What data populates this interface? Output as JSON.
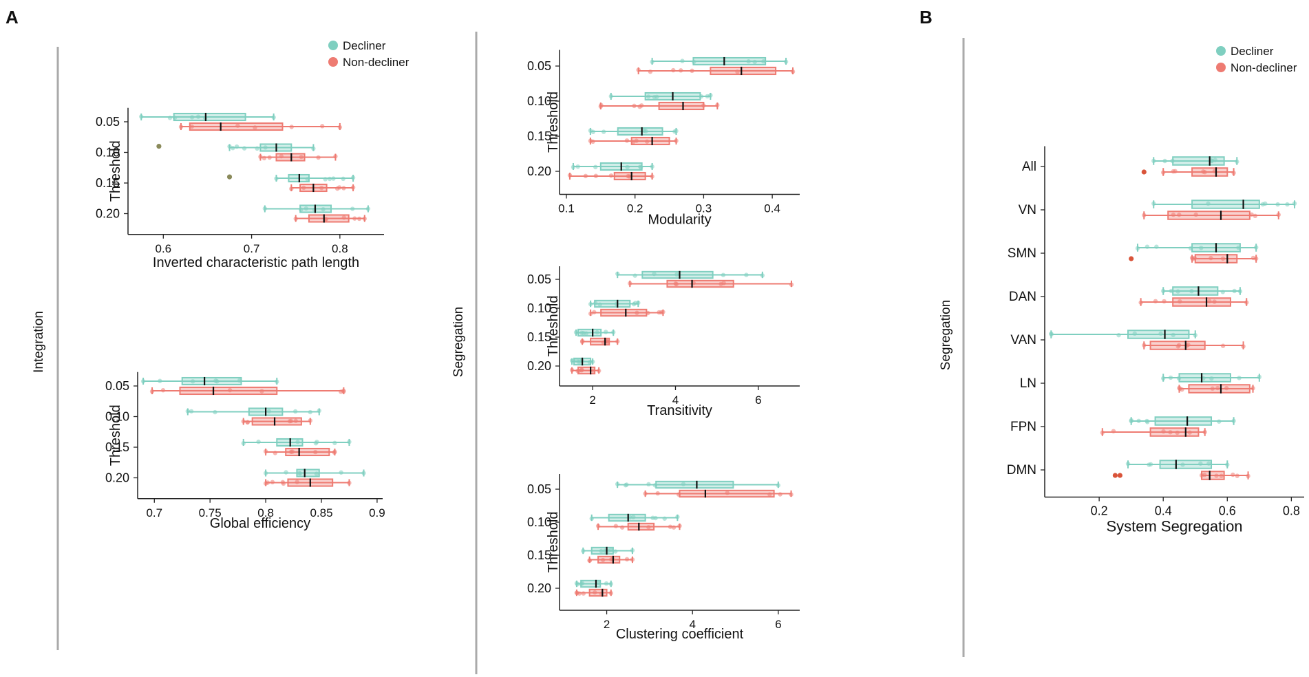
{
  "panel_labels": {
    "a": "A",
    "b": "B"
  },
  "section_labels": {
    "integration": "Integration",
    "segregation_a": "Segregation",
    "segregation_b": "Segregation"
  },
  "colors": {
    "decliner": "#7fcfc0",
    "non_decliner": "#ee7b72",
    "median": "#111111",
    "divider": "#aaaaaa",
    "outlier": "#8a8a5a"
  },
  "legend_a": {
    "decliner": "Decliner",
    "non_decliner": "Non-decliner"
  },
  "legend_b": {
    "decliner": "Decliner",
    "non_decliner": "Non-decliner"
  },
  "chart_data": [
    {
      "id": "inv_cpl",
      "type": "boxplot",
      "orientation": "horizontal",
      "xlabel": "Inverted characteristic path length",
      "ylabel": "Threshold",
      "xlim": [
        0.56,
        0.85
      ],
      "xticks": [
        0.6,
        0.7,
        0.8
      ],
      "categories": [
        "0.05",
        "0.10",
        "0.15",
        "0.20"
      ],
      "series": [
        {
          "name": "Decliner",
          "boxes": [
            {
              "min": 0.575,
              "q1": 0.612,
              "med": 0.648,
              "q3": 0.693,
              "max": 0.725
            },
            {
              "min": 0.675,
              "q1": 0.71,
              "med": 0.728,
              "q3": 0.745,
              "max": 0.77
            },
            {
              "min": 0.728,
              "q1": 0.742,
              "med": 0.754,
              "q3": 0.765,
              "max": 0.815
            },
            {
              "min": 0.715,
              "q1": 0.755,
              "med": 0.772,
              "q3": 0.79,
              "max": 0.832
            }
          ],
          "outliers": [
            [
              0.595,
              1
            ],
            [
              0.675,
              2
            ]
          ]
        },
        {
          "name": "Non-decliner",
          "boxes": [
            {
              "min": 0.62,
              "q1": 0.63,
              "med": 0.665,
              "q3": 0.735,
              "max": 0.8
            },
            {
              "min": 0.71,
              "q1": 0.728,
              "med": 0.745,
              "q3": 0.76,
              "max": 0.795
            },
            {
              "min": 0.745,
              "q1": 0.755,
              "med": 0.77,
              "q3": 0.785,
              "max": 0.815
            },
            {
              "min": 0.75,
              "q1": 0.765,
              "med": 0.782,
              "q3": 0.81,
              "max": 0.828
            }
          ],
          "outliers": []
        }
      ]
    },
    {
      "id": "glob_eff",
      "type": "boxplot",
      "orientation": "horizontal",
      "xlabel": "Global efficiency",
      "ylabel": "Threshold",
      "xlim": [
        0.685,
        0.905
      ],
      "xticks": [
        0.7,
        0.75,
        0.8,
        0.85,
        0.9
      ],
      "xtick_labels": [
        "0.7",
        "0.75",
        "0.8",
        "0.85",
        "0.9"
      ],
      "categories": [
        "0.05",
        "0.10",
        "0.15",
        "0.20"
      ],
      "series": [
        {
          "name": "Decliner",
          "boxes": [
            {
              "min": 0.69,
              "q1": 0.725,
              "med": 0.745,
              "q3": 0.778,
              "max": 0.81
            },
            {
              "min": 0.73,
              "q1": 0.785,
              "med": 0.8,
              "q3": 0.815,
              "max": 0.848
            },
            {
              "min": 0.78,
              "q1": 0.81,
              "med": 0.822,
              "q3": 0.833,
              "max": 0.875
            },
            {
              "min": 0.8,
              "q1": 0.828,
              "med": 0.835,
              "q3": 0.848,
              "max": 0.888
            }
          ],
          "outliers": []
        },
        {
          "name": "Non-decliner",
          "boxes": [
            {
              "min": 0.698,
              "q1": 0.723,
              "med": 0.753,
              "q3": 0.81,
              "max": 0.87
            },
            {
              "min": 0.78,
              "q1": 0.788,
              "med": 0.808,
              "q3": 0.832,
              "max": 0.84
            },
            {
              "min": 0.8,
              "q1": 0.818,
              "med": 0.83,
              "q3": 0.857,
              "max": 0.862
            },
            {
              "min": 0.8,
              "q1": 0.82,
              "med": 0.84,
              "q3": 0.86,
              "max": 0.875
            }
          ],
          "outliers": []
        }
      ]
    },
    {
      "id": "modularity",
      "type": "boxplot",
      "orientation": "horizontal",
      "xlabel": "Modularity",
      "ylabel": "Threshold",
      "xlim": [
        0.09,
        0.44
      ],
      "xticks": [
        0.1,
        0.2,
        0.3,
        0.4
      ],
      "categories": [
        "0.05",
        "0.10",
        "0.15",
        "0.20"
      ],
      "series": [
        {
          "name": "Decliner",
          "boxes": [
            {
              "min": 0.225,
              "q1": 0.285,
              "med": 0.33,
              "q3": 0.39,
              "max": 0.42
            },
            {
              "min": 0.165,
              "q1": 0.215,
              "med": 0.255,
              "q3": 0.295,
              "max": 0.31
            },
            {
              "min": 0.135,
              "q1": 0.175,
              "med": 0.21,
              "q3": 0.24,
              "max": 0.26
            },
            {
              "min": 0.11,
              "q1": 0.15,
              "med": 0.18,
              "q3": 0.21,
              "max": 0.225
            }
          ],
          "outliers": []
        },
        {
          "name": "Non-decliner",
          "boxes": [
            {
              "min": 0.205,
              "q1": 0.31,
              "med": 0.355,
              "q3": 0.405,
              "max": 0.43
            },
            {
              "min": 0.15,
              "q1": 0.235,
              "med": 0.27,
              "q3": 0.3,
              "max": 0.32
            },
            {
              "min": 0.135,
              "q1": 0.195,
              "med": 0.225,
              "q3": 0.25,
              "max": 0.26
            },
            {
              "min": 0.105,
              "q1": 0.17,
              "med": 0.195,
              "q3": 0.215,
              "max": 0.225
            }
          ],
          "outliers": []
        }
      ]
    },
    {
      "id": "transitivity",
      "type": "boxplot",
      "orientation": "horizontal",
      "xlabel": "Transitivity",
      "ylabel": "Threshold",
      "xlim": [
        1.2,
        7.0
      ],
      "xticks": [
        2,
        4,
        6
      ],
      "categories": [
        "0.05",
        "0.10",
        "0.15",
        "0.20"
      ],
      "series": [
        {
          "name": "Decliner",
          "boxes": [
            {
              "min": 2.6,
              "q1": 3.2,
              "med": 4.1,
              "q3": 4.9,
              "max": 6.1
            },
            {
              "min": 1.95,
              "q1": 2.05,
              "med": 2.6,
              "q3": 2.9,
              "max": 3.1
            },
            {
              "min": 1.6,
              "q1": 1.65,
              "med": 2.0,
              "q3": 2.2,
              "max": 2.5
            },
            {
              "min": 1.5,
              "q1": 1.55,
              "med": 1.75,
              "q3": 1.95,
              "max": 2.0
            }
          ],
          "outliers": []
        },
        {
          "name": "Non-decliner",
          "boxes": [
            {
              "min": 2.9,
              "q1": 3.8,
              "med": 4.4,
              "q3": 5.4,
              "max": 6.8
            },
            {
              "min": 1.95,
              "q1": 2.2,
              "med": 2.8,
              "q3": 3.3,
              "max": 3.7
            },
            {
              "min": 1.75,
              "q1": 1.95,
              "med": 2.3,
              "q3": 2.4,
              "max": 2.6
            },
            {
              "min": 1.5,
              "q1": 1.65,
              "med": 1.95,
              "q3": 2.05,
              "max": 2.15
            }
          ],
          "outliers": []
        }
      ]
    },
    {
      "id": "clustering",
      "type": "boxplot",
      "orientation": "horizontal",
      "xlabel": "Clustering coefficient",
      "ylabel": "Threshold",
      "xlim": [
        0.9,
        6.5
      ],
      "xticks": [
        2,
        4,
        6
      ],
      "categories": [
        "0.05",
        "0.10",
        "0.15",
        "0.20"
      ],
      "series": [
        {
          "name": "Decliner",
          "boxes": [
            {
              "min": 2.25,
              "q1": 3.15,
              "med": 4.1,
              "q3": 4.95,
              "max": 6.0
            },
            {
              "min": 1.65,
              "q1": 2.05,
              "med": 2.5,
              "q3": 2.9,
              "max": 3.65
            },
            {
              "min": 1.45,
              "q1": 1.65,
              "med": 2.0,
              "q3": 2.15,
              "max": 2.6
            },
            {
              "min": 1.3,
              "q1": 1.4,
              "med": 1.75,
              "q3": 1.85,
              "max": 2.1
            }
          ],
          "outliers": []
        },
        {
          "name": "Non-decliner",
          "boxes": [
            {
              "min": 2.9,
              "q1": 3.7,
              "med": 4.3,
              "q3": 5.9,
              "max": 6.3
            },
            {
              "min": 1.8,
              "q1": 2.5,
              "med": 2.75,
              "q3": 3.1,
              "max": 3.7
            },
            {
              "min": 1.6,
              "q1": 1.8,
              "med": 2.15,
              "q3": 2.3,
              "max": 2.6
            },
            {
              "min": 1.3,
              "q1": 1.6,
              "med": 1.9,
              "q3": 2.0,
              "max": 2.1
            }
          ],
          "outliers": []
        }
      ]
    },
    {
      "id": "system_segregation",
      "type": "boxplot",
      "orientation": "horizontal",
      "xlabel": "System Segregation",
      "ylabel": "",
      "xlim": [
        0.03,
        0.84
      ],
      "xticks": [
        0.2,
        0.4,
        0.6,
        0.8
      ],
      "categories": [
        "All",
        "VN",
        "SMN",
        "DAN",
        "VAN",
        "LN",
        "FPN",
        "DMN"
      ],
      "series": [
        {
          "name": "Decliner",
          "boxes": [
            {
              "min": 0.37,
              "q1": 0.43,
              "med": 0.545,
              "q3": 0.59,
              "max": 0.63
            },
            {
              "min": 0.37,
              "q1": 0.49,
              "med": 0.65,
              "q3": 0.7,
              "max": 0.81
            },
            {
              "min": 0.32,
              "q1": 0.49,
              "med": 0.565,
              "q3": 0.64,
              "max": 0.69
            },
            {
              "min": 0.4,
              "q1": 0.43,
              "med": 0.51,
              "q3": 0.57,
              "max": 0.64
            },
            {
              "min": 0.05,
              "q1": 0.29,
              "med": 0.405,
              "q3": 0.48,
              "max": 0.5
            },
            {
              "min": 0.4,
              "q1": 0.45,
              "med": 0.52,
              "q3": 0.61,
              "max": 0.7
            },
            {
              "min": 0.3,
              "q1": 0.375,
              "med": 0.475,
              "q3": 0.55,
              "max": 0.62
            },
            {
              "min": 0.29,
              "q1": 0.39,
              "med": 0.44,
              "q3": 0.55,
              "max": 0.6
            }
          ],
          "outliers": []
        },
        {
          "name": "Non-decliner",
          "boxes": [
            {
              "min": 0.4,
              "q1": 0.49,
              "med": 0.565,
              "q3": 0.6,
              "max": 0.62
            },
            {
              "min": 0.34,
              "q1": 0.415,
              "med": 0.58,
              "q3": 0.67,
              "max": 0.76
            },
            {
              "min": 0.49,
              "q1": 0.5,
              "med": 0.6,
              "q3": 0.63,
              "max": 0.69
            },
            {
              "min": 0.33,
              "q1": 0.43,
              "med": 0.535,
              "q3": 0.61,
              "max": 0.66
            },
            {
              "min": 0.34,
              "q1": 0.36,
              "med": 0.47,
              "q3": 0.53,
              "max": 0.65
            },
            {
              "min": 0.45,
              "q1": 0.48,
              "med": 0.58,
              "q3": 0.67,
              "max": 0.68
            },
            {
              "min": 0.21,
              "q1": 0.36,
              "med": 0.47,
              "q3": 0.51,
              "max": 0.53
            },
            {
              "min": 0.52,
              "q1": 0.52,
              "med": 0.545,
              "q3": 0.59,
              "max": 0.665
            }
          ],
          "outliers": [
            [
              0.34,
              0
            ],
            [
              0.3,
              2
            ],
            [
              0.25,
              7
            ],
            [
              0.265,
              7
            ]
          ]
        }
      ]
    }
  ]
}
